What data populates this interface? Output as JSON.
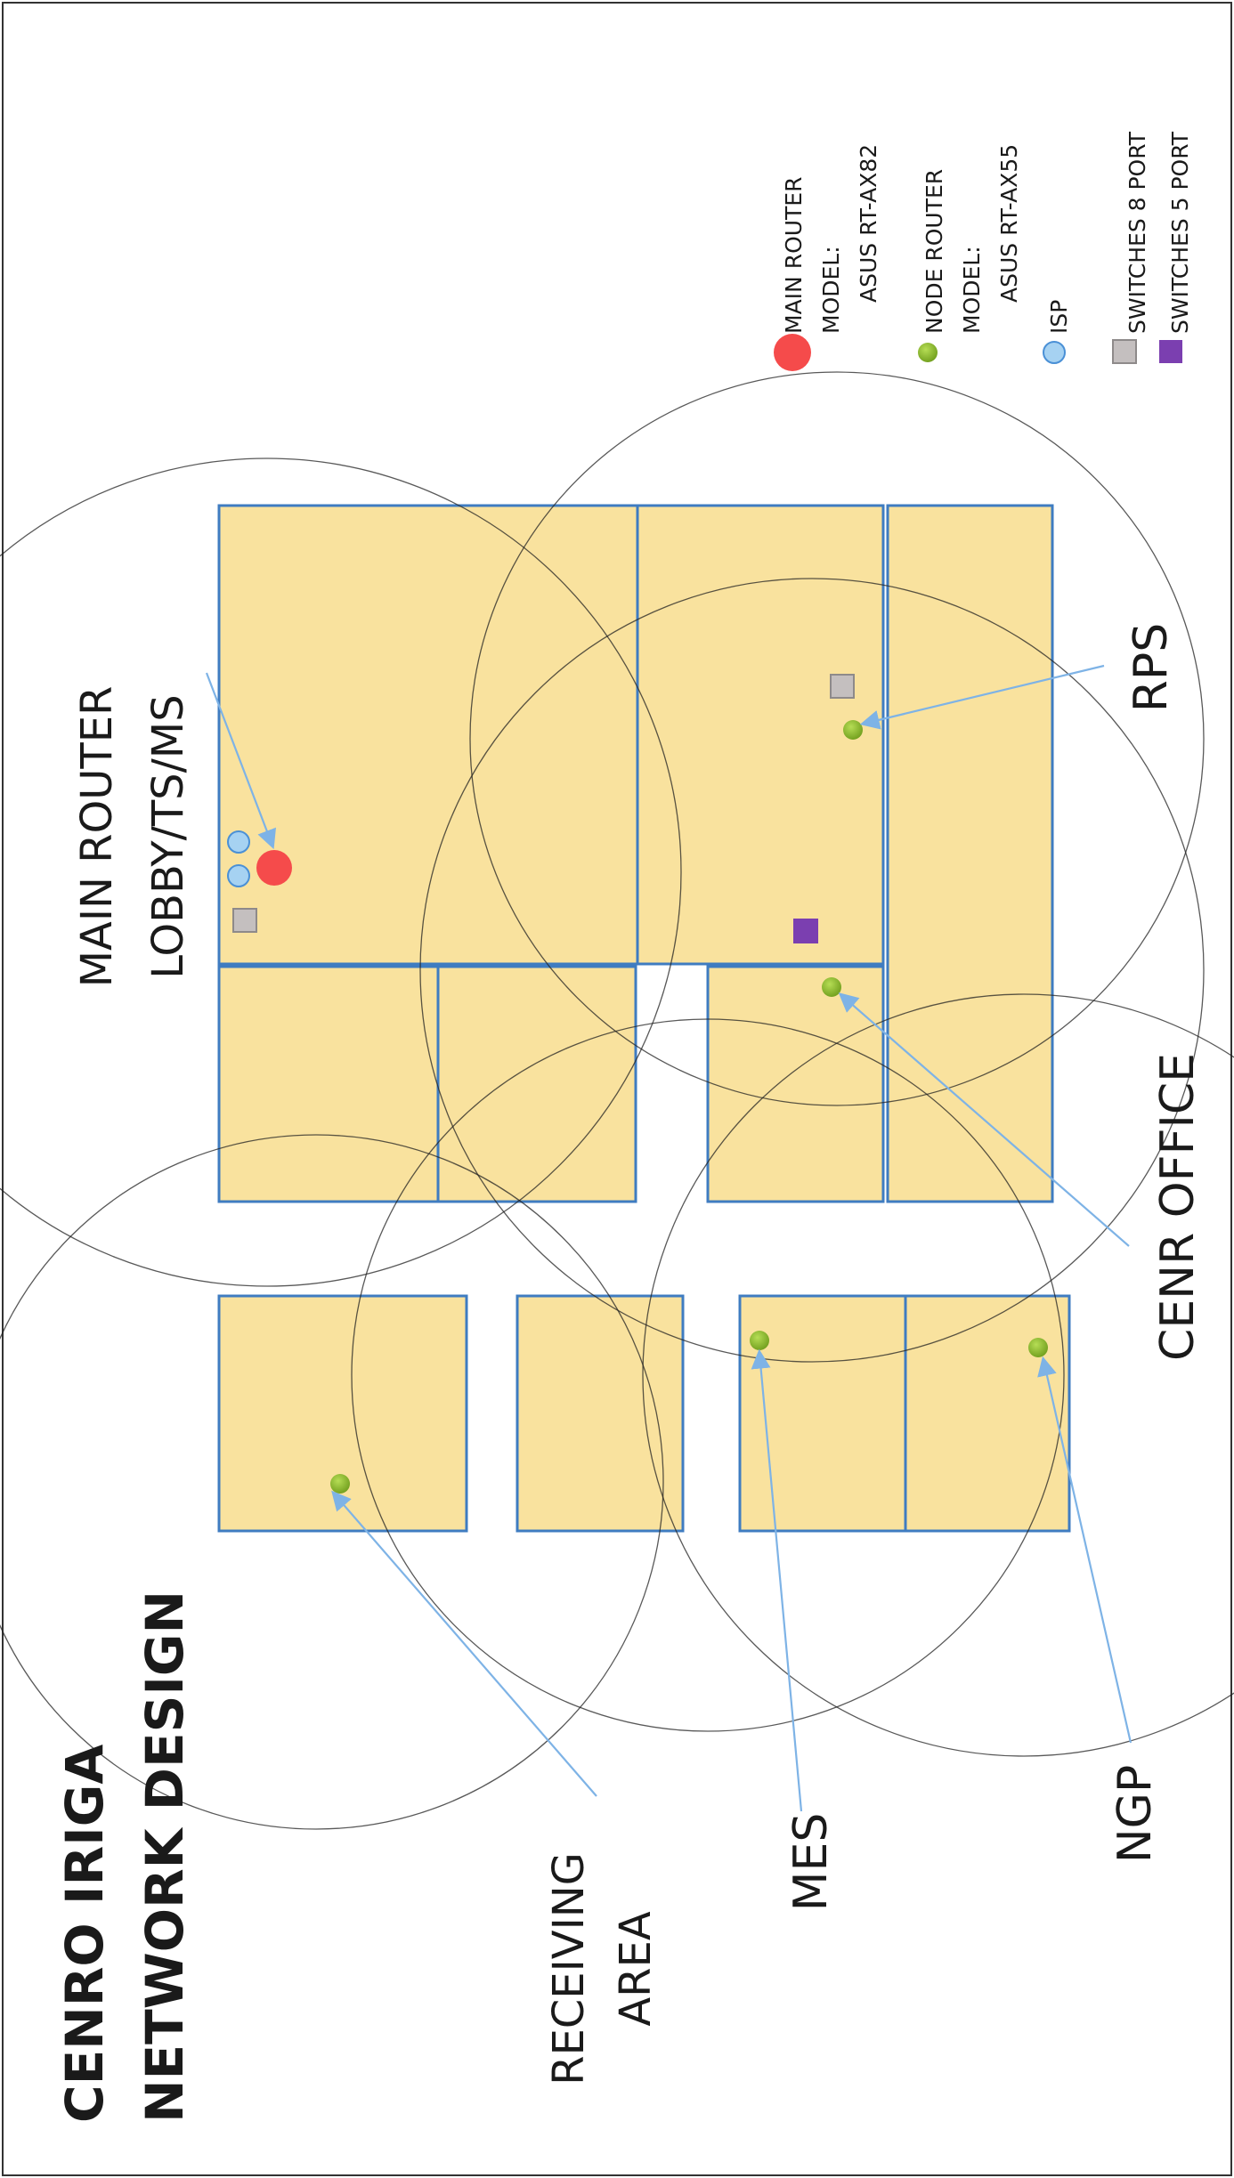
{
  "title": {
    "line1": "CENRO IRIGA",
    "line2": "NETWORK DESIGN"
  },
  "legend": [
    {
      "shape": "circle-large",
      "color": "#f54b4b",
      "lines": [
        "MAIN ROUTER",
        "MODEL:",
        "ASUS RT-AX82"
      ]
    },
    {
      "shape": "circle-small",
      "color": "#8cbc2a",
      "lines": [
        "NODE ROUTER",
        "MODEL:",
        "ASUS RT-AX55"
      ]
    },
    {
      "shape": "circle-outline",
      "color": "#a6d2f2",
      "lines": [
        "ISP"
      ]
    },
    {
      "shape": "square",
      "color": "#c4bfbf",
      "lines": [
        "SWITCHES 8 PORT"
      ]
    },
    {
      "shape": "square",
      "color": "#7b3fb0",
      "lines": [
        "SWITCHES 5 PORT"
      ]
    }
  ],
  "areas": {
    "main_router": [
      "MAIN ROUTER",
      "LOBBY/TS/MS"
    ],
    "rps": [
      "RPS"
    ],
    "cenr_office": [
      "CENR OFFICE"
    ],
    "receiving_area": [
      "RECEIVING",
      "AREA"
    ],
    "mes": [
      "MES"
    ],
    "ngp": [
      "NGP"
    ]
  },
  "colors": {
    "room_fill": "#f9e29e",
    "room_border": "#3f7cc1",
    "main_router": "#f54b4b",
    "node_router": "#8cbc2a",
    "isp": "#a6d2f2",
    "switch_8_port": "#c4bfbf",
    "switch_5_port": "#7b3fb0",
    "pointer_line": "#7eb3e6"
  }
}
